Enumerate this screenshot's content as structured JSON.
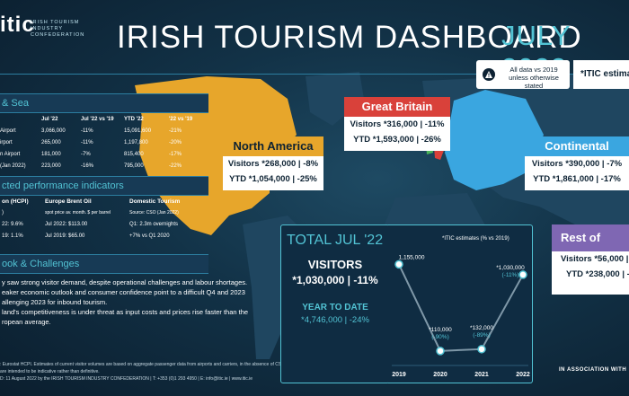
{
  "header": {
    "logo": "itic",
    "logo_sub": "IRISH TOURISM INDUSTRY CONFEDERATION",
    "title": "IRISH TOURISM DASHBOARD",
    "month": "JULY 2022",
    "note": "All data vs 2019 unless otherwise stated",
    "itic_estimate": "*ITIC estimate"
  },
  "air_sea": {
    "title": "& Sea",
    "headers": [
      "",
      "Jul '22",
      "Jul '22 vs '19",
      "YTD '22",
      "'22 vs '19"
    ],
    "rows": [
      [
        "Airport",
        "3,066,000",
        "-11%",
        "15,091,600",
        "-21%"
      ],
      [
        "irport",
        "265,000",
        "-11%",
        "1,197,800",
        "-20%"
      ],
      [
        "n Airport",
        "181,000",
        "-7%",
        "815,400",
        "-17%"
      ],
      [
        "(Jan 2022)",
        "223,000",
        "-16%",
        "795,000",
        "-22%"
      ]
    ]
  },
  "indicators": {
    "title": "cted performance indicators",
    "cols": [
      {
        "h": "on (HCPI)",
        "l1": ")",
        "l2": "22: 9.6%",
        "l3": "19: 1.1%"
      },
      {
        "h": "Europe Brent Oil",
        "l1": "spot price av. month. $ per barrel",
        "l2": "Jul 2022: $113.00",
        "l3": "Jul 2019: $65.00"
      },
      {
        "h": "Domestic Tourism",
        "l1": "Source: CSO (Jan 2022)",
        "l2": "Q1: 2.3m overnights",
        "l3": "+7% vs Q1 2020"
      }
    ]
  },
  "outlook": {
    "title": "ook & Challenges",
    "lines": [
      "y saw strong visitor demand, despite operational challenges and labour shortages.",
      "eaker economic outlook and consumer confidence point to a difficult Q4 and 2023",
      "allenging 2023 for inbound tourism.",
      "land's competitiveness is under threat as input costs and prices rise faster than the",
      "ropean average."
    ]
  },
  "footer": {
    "l1": ": Eurostat HCPI. Estimates of current visitor volumes are based on aggregate passenger data from airports and carriers, in the absence of CSO port surveys.",
    "l2": "are intended to be indicative rather than definitive.",
    "l3": "D: 11 August 2022 by the IRISH TOURISM INDUSTRY CONFEDERATION  |  T: +353 (0)1 293 4950  |  E: info@itic.ie  |  www.itic.ie",
    "assoc": "IN ASSOCIATION WITH"
  },
  "regions": {
    "north_america": {
      "name": "North America",
      "visitors": "Visitors *268,000 | -8%",
      "ytd": "YTD *1,054,000 | -25%",
      "color": "#e7a62b"
    },
    "great_britain": {
      "name": "Great Britain",
      "visitors": "Visitors *316,000 | -11%",
      "ytd": "YTD *1,593,000 | -26%",
      "color": "#d9413a"
    },
    "continental_europe": {
      "name": "Continental Europe",
      "visitors": "Visitors *390,000 | -7%",
      "ytd": "YTD *1,861,000 | -17%",
      "color": "#3aa6e0"
    },
    "rest_of_world": {
      "name": "Rest of Worl",
      "visitors": "Visitors *56,000 | -",
      "ytd": "YTD *238,000 | -4",
      "color": "#7f67b3"
    }
  },
  "total": {
    "title": "TOTAL JUL '22",
    "visitors_label": "VISITORS",
    "visitors": "*1,030,000 | -11%",
    "ytd_label": "YEAR TO DATE",
    "ytd": "*4,746,000 | -24%"
  },
  "chart_data": {
    "type": "line",
    "title": "",
    "annotation": "*ITIC estimates (% vs 2019)",
    "x": [
      "2019",
      "2020",
      "2021",
      "2022"
    ],
    "series": [
      {
        "values": [
          1155000,
          110000,
          132000,
          1030000
        ]
      }
    ],
    "labels": [
      {
        "value": "1,155,000",
        "pct": ""
      },
      {
        "value": "*110,000",
        "pct": "(-90%)"
      },
      {
        "value": "*132,000",
        "pct": "(-89%)"
      },
      {
        "value": "*1,030,000",
        "pct": "(-11%)"
      }
    ],
    "ylim": [
      0,
      1300000
    ],
    "grid": false,
    "line_color": "#7f98a8",
    "point_color": "#52c3d4"
  }
}
